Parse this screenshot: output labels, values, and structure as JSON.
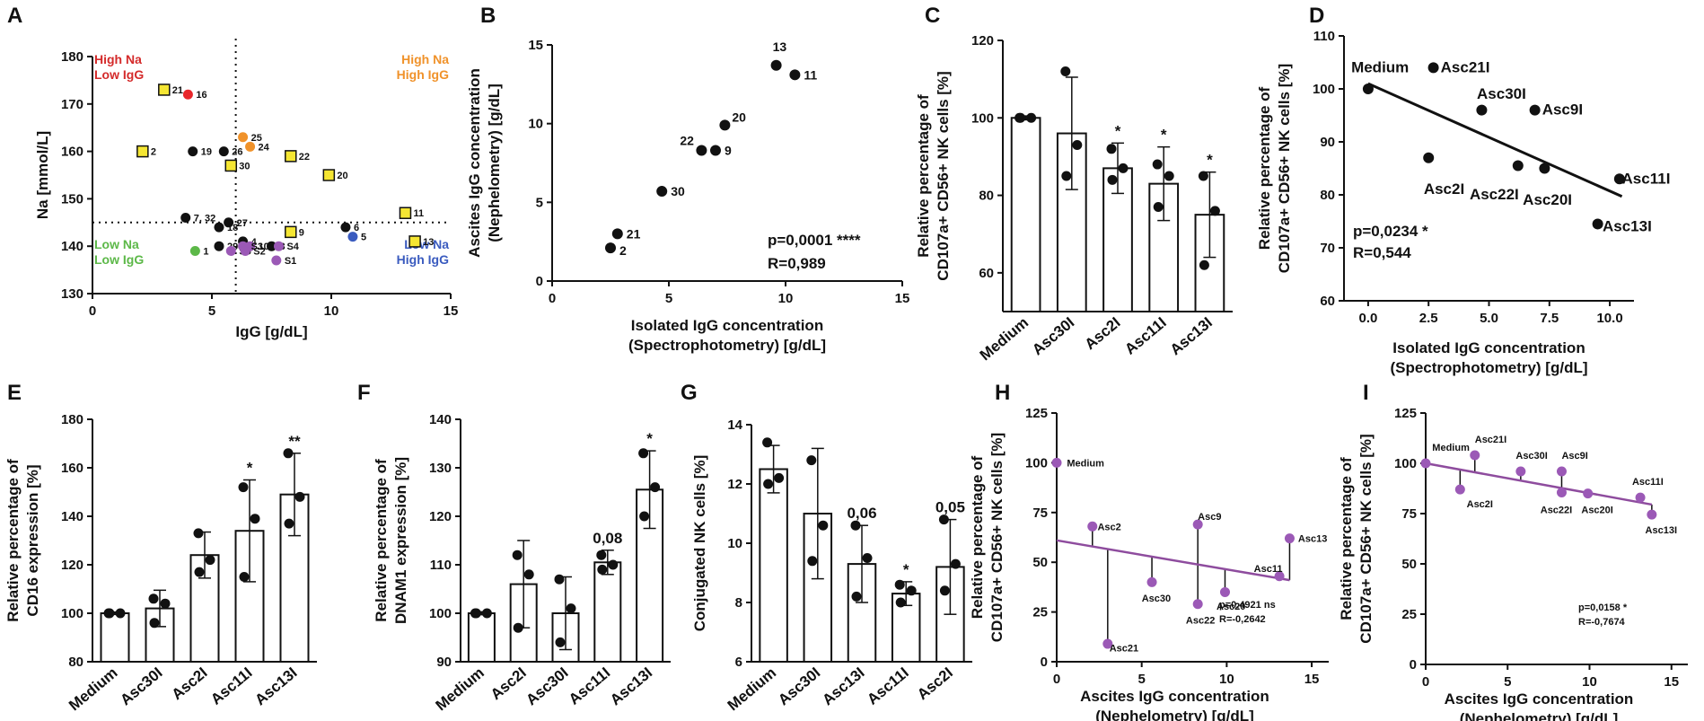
{
  "chart_data": [
    {
      "id": "A",
      "type": "scatter",
      "panel_label": "A",
      "xlabel": "IgG [g/dL]",
      "ylabel": "Na [mmol/L]",
      "xlim": [
        0,
        15
      ],
      "ylim": [
        130,
        180
      ],
      "xticks": [
        0,
        5,
        10,
        15
      ],
      "yticks": [
        130,
        140,
        150,
        160,
        170,
        180
      ],
      "threshold_x": 6,
      "threshold_y": 145,
      "quadrant_labels": [
        {
          "lines": [
            "High Na",
            "Low IgG"
          ],
          "color": "#d42a2a",
          "pos": "top-left"
        },
        {
          "lines": [
            "High Na",
            "High IgG"
          ],
          "color": "#f0922a",
          "pos": "top-right"
        },
        {
          "lines": [
            "Low Na",
            "Low IgG"
          ],
          "color": "#5cb848",
          "pos": "bottom-left"
        },
        {
          "lines": [
            "Low Na",
            "High IgG"
          ],
          "color": "#3a5bbf",
          "pos": "bottom-right"
        }
      ],
      "points": [
        {
          "label": "21",
          "x": 3.0,
          "y": 173,
          "marker": "square",
          "color": "#f5e633"
        },
        {
          "label": "16",
          "x": 4.0,
          "y": 172,
          "marker": "circle",
          "color": "#e8262a"
        },
        {
          "label": "2",
          "x": 2.1,
          "y": 160,
          "marker": "square",
          "color": "#f5e633"
        },
        {
          "label": "19",
          "x": 4.2,
          "y": 160,
          "marker": "circle",
          "color": "#111111"
        },
        {
          "label": "26",
          "x": 5.5,
          "y": 160,
          "marker": "circle",
          "color": "#111111"
        },
        {
          "label": "25",
          "x": 6.3,
          "y": 163,
          "marker": "circle",
          "color": "#f0922a"
        },
        {
          "label": "24",
          "x": 6.6,
          "y": 161,
          "marker": "circle",
          "color": "#f0922a"
        },
        {
          "label": "30",
          "x": 5.8,
          "y": 157,
          "marker": "square",
          "color": "#f5e633"
        },
        {
          "label": "22",
          "x": 8.3,
          "y": 159,
          "marker": "square",
          "color": "#f5e633"
        },
        {
          "label": "20",
          "x": 9.9,
          "y": 155,
          "marker": "square",
          "color": "#f5e633"
        },
        {
          "label": "11",
          "x": 13.1,
          "y": 147,
          "marker": "square",
          "color": "#f5e633"
        },
        {
          "label": "13",
          "x": 13.5,
          "y": 141,
          "marker": "square",
          "color": "#f5e633"
        },
        {
          "label": "9",
          "x": 8.3,
          "y": 143,
          "marker": "square",
          "color": "#f5e633"
        },
        {
          "label": "7, 32",
          "x": 3.9,
          "y": 146,
          "marker": "circle",
          "color": "#111111"
        },
        {
          "label": "27",
          "x": 5.7,
          "y": 145,
          "marker": "circle",
          "color": "#111111"
        },
        {
          "label": "18",
          "x": 5.3,
          "y": 144,
          "marker": "circle",
          "color": "#111111"
        },
        {
          "label": "4",
          "x": 6.3,
          "y": 141,
          "marker": "circle",
          "color": "#111111"
        },
        {
          "label": "3",
          "x": 7.5,
          "y": 140,
          "marker": "circle",
          "color": "#111111"
        },
        {
          "label": "29",
          "x": 5.3,
          "y": 140,
          "marker": "circle",
          "color": "#111111"
        },
        {
          "label": "1",
          "x": 4.3,
          "y": 139,
          "marker": "circle",
          "color": "#5cb848"
        },
        {
          "label": "S5",
          "x": 5.8,
          "y": 139,
          "marker": "circle",
          "color": "#9b59b6"
        },
        {
          "label": "S2",
          "x": 6.4,
          "y": 139,
          "marker": "circle",
          "color": "#9b59b6"
        },
        {
          "label": "10",
          "x": 6.6,
          "y": 140,
          "marker": "circle",
          "color": "#9b59b6"
        },
        {
          "label": "S3",
          "x": 6.3,
          "y": 140,
          "marker": "circle",
          "color": "#9b59b6"
        },
        {
          "label": "S4",
          "x": 7.8,
          "y": 140,
          "marker": "circle",
          "color": "#9b59b6"
        },
        {
          "label": "S1",
          "x": 7.7,
          "y": 137,
          "marker": "circle",
          "color": "#9b59b6"
        },
        {
          "label": "6",
          "x": 10.6,
          "y": 144,
          "marker": "circle",
          "color": "#111111"
        },
        {
          "label": "5",
          "x": 10.9,
          "y": 142,
          "marker": "circle",
          "color": "#3a5bbf"
        }
      ]
    },
    {
      "id": "B",
      "type": "scatter",
      "panel_label": "B",
      "xlabel": [
        "Isolated IgG concentration",
        "(Spectrophotometry) [g/dL]"
      ],
      "ylabel": [
        "Ascites IgG concentration",
        "(Nephelometry) [g/dL]"
      ],
      "xlim": [
        0,
        15
      ],
      "ylim": [
        0,
        15
      ],
      "xticks": [
        0,
        5,
        10,
        15
      ],
      "yticks": [
        0,
        5,
        10,
        15
      ],
      "stats": [
        "p=0,0001 ****",
        "R=0,989"
      ],
      "points": [
        {
          "label": "2",
          "x": 2.5,
          "y": 2.1
        },
        {
          "label": "21",
          "x": 2.8,
          "y": 3.0
        },
        {
          "label": "30",
          "x": 4.7,
          "y": 5.7
        },
        {
          "label": "22",
          "x": 6.4,
          "y": 8.3
        },
        {
          "label": "9",
          "x": 7.0,
          "y": 8.3
        },
        {
          "label": "20",
          "x": 7.4,
          "y": 9.9
        },
        {
          "label": "13",
          "x": 9.6,
          "y": 13.7
        },
        {
          "label": "11",
          "x": 10.4,
          "y": 13.1
        }
      ]
    },
    {
      "id": "C",
      "type": "bar",
      "panel_label": "C",
      "ylabel": [
        "Relative percentage of",
        "CD107a+ CD56+ NK cells [%]"
      ],
      "ylim": [
        50,
        120
      ],
      "yticks": [
        60,
        80,
        100,
        120
      ],
      "categories": [
        "Medium",
        "Asc30I",
        "Asc2I",
        "Asc11I",
        "Asc13I"
      ],
      "values": [
        100,
        96,
        87,
        83,
        75
      ],
      "errors": [
        0.5,
        14.5,
        6.5,
        9.5,
        11
      ],
      "replicates": [
        [
          100,
          100,
          100
        ],
        [
          112,
          93,
          85
        ],
        [
          92,
          87,
          84
        ],
        [
          88,
          85,
          77
        ],
        [
          85,
          76,
          62
        ]
      ],
      "annotations": [
        "",
        "",
        "*",
        "*",
        "*"
      ]
    },
    {
      "id": "D",
      "type": "scatter",
      "panel_label": "D",
      "xlabel": [
        "Isolated IgG concentration",
        "(Spectrophotometry) [g/dL]"
      ],
      "ylabel": [
        "Relative percentage of",
        "CD107a+ CD56+ NK cells [%]"
      ],
      "xlim": [
        -1,
        11
      ],
      "ylim": [
        60,
        110
      ],
      "xticks": [
        0.0,
        2.5,
        5.0,
        7.5,
        10.0
      ],
      "xtick_labels": [
        "0.0",
        "2.5",
        "5.0",
        "7.5",
        "10.0"
      ],
      "yticks": [
        60,
        70,
        80,
        90,
        100,
        110
      ],
      "stats": [
        "p=0,0234 *",
        "R=0,544"
      ],
      "regression": {
        "x0": 0,
        "y0": 101,
        "x1": 10.5,
        "y1": 79.7
      },
      "points": [
        {
          "label": "Medium",
          "x": 0.0,
          "y": 100,
          "lx": -0.7,
          "ly": 104,
          "anchor": "start"
        },
        {
          "label": "Asc21I",
          "x": 2.7,
          "y": 104,
          "lx": 3.0,
          "ly": 104,
          "anchor": "start"
        },
        {
          "label": "Asc30I",
          "x": 4.7,
          "y": 96,
          "lx": 4.5,
          "ly": 99,
          "anchor": "start"
        },
        {
          "label": "Asc9I",
          "x": 6.9,
          "y": 96,
          "lx": 7.2,
          "ly": 96,
          "anchor": "start"
        },
        {
          "label": "Asc2I",
          "x": 2.5,
          "y": 87,
          "lx": 2.3,
          "ly": 81,
          "anchor": "start"
        },
        {
          "label": "Asc22I",
          "x": 6.2,
          "y": 85.5,
          "lx": 4.2,
          "ly": 80,
          "anchor": "start"
        },
        {
          "label": "Asc20I",
          "x": 7.3,
          "y": 85,
          "lx": 6.4,
          "ly": 79,
          "anchor": "start"
        },
        {
          "label": "Asc11I",
          "x": 10.4,
          "y": 83,
          "lx": 10.5,
          "ly": 83,
          "anchor": "start"
        },
        {
          "label": "Asc13I",
          "x": 9.5,
          "y": 74.5,
          "lx": 9.7,
          "ly": 74,
          "anchor": "start"
        }
      ]
    },
    {
      "id": "E",
      "type": "bar",
      "panel_label": "E",
      "ylabel": [
        "Relative percentage of",
        "CD16 expression [%]"
      ],
      "ylim": [
        80,
        180
      ],
      "yticks": [
        80,
        100,
        120,
        140,
        160,
        180
      ],
      "categories": [
        "Medium",
        "Asc30I",
        "Asc2I",
        "Asc11I",
        "Asc13I"
      ],
      "values": [
        100,
        102,
        124,
        134,
        149
      ],
      "errors": [
        0.5,
        7.5,
        9.5,
        21,
        17
      ],
      "replicates": [
        [
          100,
          100,
          100
        ],
        [
          106,
          104,
          96
        ],
        [
          133,
          122,
          117
        ],
        [
          152,
          139,
          115
        ],
        [
          166,
          148,
          137
        ]
      ],
      "annotations": [
        "",
        "",
        "",
        "*",
        "**"
      ]
    },
    {
      "id": "F",
      "type": "bar",
      "panel_label": "F",
      "ylabel": [
        "Relative percentage of",
        "DNAM1 expression [%]"
      ],
      "ylim": [
        90,
        140
      ],
      "yticks": [
        90,
        100,
        110,
        120,
        130,
        140
      ],
      "categories": [
        "Medium",
        "Asc2I",
        "Asc30I",
        "Asc11I",
        "Asc13I"
      ],
      "values": [
        100,
        106,
        100,
        110.5,
        125.5
      ],
      "errors": [
        0.3,
        9,
        7.5,
        2.5,
        8
      ],
      "replicates": [
        [
          100,
          100,
          100
        ],
        [
          112,
          108,
          97
        ],
        [
          107,
          101,
          94
        ],
        [
          112,
          110,
          109
        ],
        [
          133,
          126,
          120
        ]
      ],
      "annotations": [
        "",
        "",
        "",
        "0,08",
        "*"
      ]
    },
    {
      "id": "G",
      "type": "bar",
      "panel_label": "G",
      "ylabel": [
        "Conjugated NK cells [%]"
      ],
      "ylim": [
        6,
        14
      ],
      "yticks": [
        6,
        8,
        10,
        12,
        14
      ],
      "categories": [
        "Medium",
        "Asc30I",
        "Asc13I",
        "Asc11I",
        "Asc2I"
      ],
      "values": [
        12.5,
        11,
        9.3,
        8.3,
        9.2
      ],
      "errors": [
        0.8,
        2.2,
        1.3,
        0.4,
        1.6
      ],
      "replicates": [
        [
          13.4,
          12.2,
          12.0
        ],
        [
          12.8,
          10.6,
          9.4
        ],
        [
          10.6,
          9.5,
          8.2
        ],
        [
          8.6,
          8.4,
          8.0
        ],
        [
          10.8,
          9.3,
          8.4
        ]
      ],
      "annotations": [
        "",
        "",
        "0,06",
        "*",
        "0,05"
      ]
    },
    {
      "id": "H",
      "type": "scatter",
      "panel_label": "H",
      "xlabel": [
        "Ascites IgG concentration",
        "(Nephelometry) [g/dL]"
      ],
      "ylabel": [
        "Relative percentage of",
        "CD107a+ CD56+ NK cells [%]"
      ],
      "xlim": [
        0,
        16
      ],
      "ylim": [
        0,
        125
      ],
      "xticks": [
        0,
        5,
        10,
        15
      ],
      "yticks": [
        0,
        25,
        50,
        75,
        100,
        125
      ],
      "stats": [
        "p=0,4921 ns",
        "R=-0,2642"
      ],
      "regression": {
        "x0": 0,
        "y0": 61,
        "x1": 13.7,
        "y1": 41,
        "color": "#8e4c9e"
      },
      "points": [
        {
          "label": "Medium",
          "x": 0,
          "y": 100,
          "lx": 0.6,
          "ly": 100
        },
        {
          "label": "Asc2",
          "x": 2.1,
          "y": 68,
          "lx": 2.4,
          "ly": 68
        },
        {
          "label": "Asc21",
          "x": 3.0,
          "y": 9,
          "lx": 3.1,
          "ly": 7
        },
        {
          "label": "Asc30",
          "x": 5.6,
          "y": 40,
          "lx": 5.0,
          "ly": 32
        },
        {
          "label": "Asc9",
          "x": 8.3,
          "y": 69,
          "lx": 8.3,
          "ly": 73
        },
        {
          "label": "Asc22",
          "x": 8.3,
          "y": 29,
          "lx": 7.6,
          "ly": 21
        },
        {
          "label": "Asc20",
          "x": 9.9,
          "y": 35,
          "lx": 9.4,
          "ly": 28
        },
        {
          "label": "Asc11",
          "x": 13.1,
          "y": 43,
          "lx": 11.6,
          "ly": 47
        },
        {
          "label": "Asc13",
          "x": 13.7,
          "y": 62,
          "lx": 14.2,
          "ly": 62
        }
      ]
    },
    {
      "id": "I",
      "type": "scatter",
      "panel_label": "I",
      "xlabel": [
        "Ascites IgG concentration",
        "(Nephelometry) [g/dL]"
      ],
      "ylabel": [
        "Relative percentage of",
        "CD107a+ CD56+ NK cells [%]"
      ],
      "xlim": [
        0,
        16
      ],
      "ylim": [
        0,
        125
      ],
      "xticks": [
        0,
        5,
        10,
        15
      ],
      "yticks": [
        0,
        25,
        50,
        75,
        100,
        125
      ],
      "stats": [
        "p=0,0158 *",
        "R=-0,7674"
      ],
      "regression": {
        "x0": 0,
        "y0": 100,
        "x1": 13.8,
        "y1": 79.5,
        "color": "#8e4c9e"
      },
      "points": [
        {
          "label": "Medium",
          "x": 0,
          "y": 100,
          "lx": 0.4,
          "ly": 108
        },
        {
          "label": "Asc21I",
          "x": 3.0,
          "y": 104,
          "lx": 3.0,
          "ly": 112
        },
        {
          "label": "Asc30I",
          "x": 5.8,
          "y": 96,
          "lx": 5.5,
          "ly": 104
        },
        {
          "label": "Asc9I",
          "x": 8.3,
          "y": 96,
          "lx": 8.3,
          "ly": 104
        },
        {
          "label": "Asc2I",
          "x": 2.1,
          "y": 87,
          "lx": 2.5,
          "ly": 80
        },
        {
          "label": "Asc22I",
          "x": 8.3,
          "y": 85.5,
          "lx": 7.0,
          "ly": 77
        },
        {
          "label": "Asc20I",
          "x": 9.9,
          "y": 85,
          "lx": 9.5,
          "ly": 77
        },
        {
          "label": "Asc11I",
          "x": 13.1,
          "y": 83,
          "lx": 12.6,
          "ly": 91
        },
        {
          "label": "Asc13I",
          "x": 13.8,
          "y": 74.5,
          "lx": 13.4,
          "ly": 67
        }
      ]
    }
  ]
}
